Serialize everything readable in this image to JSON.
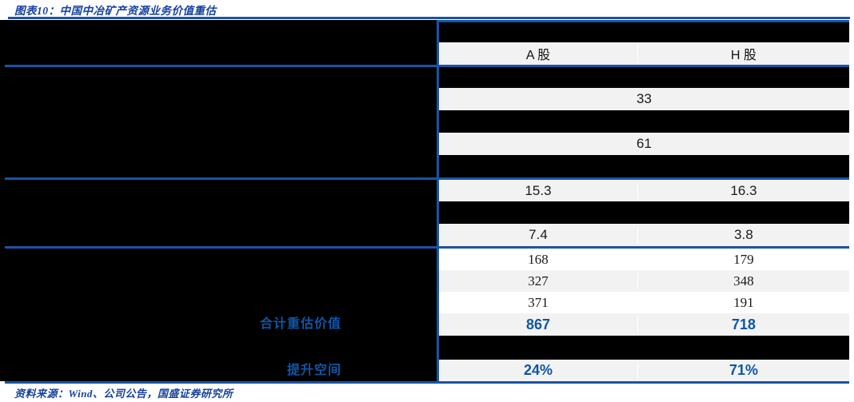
{
  "title": "图表10：中国中冶矿产资源业务价值重估",
  "source": "资料来源：Wind、公司公告，国盛证券研究所",
  "colors": {
    "accent_blue_lines": "#1A53A6",
    "value_blue": "#0D56A7",
    "title_blue": "#16419E",
    "row_gray": "#F2F2F2",
    "label_panel_black": "#000000"
  },
  "table": {
    "header": {
      "a": "A 股",
      "h": "H 股"
    },
    "merged": [
      {
        "value": "33"
      },
      {
        "value": "61"
      }
    ],
    "pairs": [
      {
        "a": "15.3",
        "h": "16.3"
      },
      {
        "a": "7.4",
        "h": "3.8"
      },
      {
        "a": "168",
        "h": "179"
      },
      {
        "a": "327",
        "h": "348"
      },
      {
        "a": "371",
        "h": "191"
      }
    ],
    "total": {
      "label": "合计重估价值",
      "a": "867",
      "h": "718"
    },
    "upside": {
      "label": "提升空间",
      "a": "24%",
      "h": "71%"
    }
  },
  "chart_data": {
    "type": "table",
    "title": "图表10：中国中冶矿产资源业务价值重估",
    "columns": [
      "A股",
      "H股"
    ],
    "rows": [
      {
        "label": "",
        "values": [
          "33"
        ],
        "merged": true
      },
      {
        "label": "",
        "values": [
          "61"
        ],
        "merged": true
      },
      {
        "label": "",
        "values": [
          15.3,
          16.3
        ]
      },
      {
        "label": "",
        "values": [
          7.4,
          3.8
        ]
      },
      {
        "label": "",
        "values": [
          168,
          179
        ]
      },
      {
        "label": "",
        "values": [
          327,
          348
        ]
      },
      {
        "label": "",
        "values": [
          371,
          191
        ]
      },
      {
        "label": "合计重估价值",
        "values": [
          867,
          718
        ]
      },
      {
        "label": "提升空间",
        "values": [
          "24%",
          "71%"
        ]
      }
    ],
    "source": "资料来源：Wind、公司公告，国盛证券研究所"
  }
}
